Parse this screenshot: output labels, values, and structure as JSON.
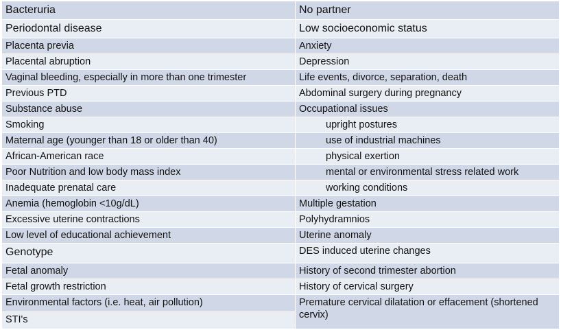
{
  "table": {
    "left": [
      "Bacteruria",
      "Periodontal disease",
      "Placenta previa",
      "Placental abruption",
      "Vaginal bleeding, especially in more than one trimester",
      "Previous PTD",
      "Substance abuse",
      "Smoking",
      "Maternal age (younger than 18 or older than 40)",
      "African-American race",
      "Poor Nutrition and low body mass index",
      "Inadequate prenatal care",
      "Anemia (hemoglobin <10g/dL)",
      "Excessive uterine contractions",
      "Low level of educational achievement",
      "Genotype",
      "Fetal anomaly",
      "Fetal growth restriction",
      "Environmental factors (i.e. heat, air pollution)",
      "STI's"
    ],
    "right": [
      "No partner",
      "Low socioeconomic status",
      "Anxiety",
      "Depression",
      "Life events, divorce, separation, death",
      "Abdominal surgery during pregnancy",
      "Occupational issues",
      "upright postures",
      "use of industrial machines",
      "physical exertion",
      "mental  or environmental stress related work",
      "working conditions",
      "Multiple gestation",
      "Polyhydramnios",
      "Uterine anomaly",
      "DES induced uterine changes",
      "History of second trimester abortion",
      "History of cervical surgery",
      "Premature cervical dilatation or effacement (shortened cervix)"
    ]
  }
}
